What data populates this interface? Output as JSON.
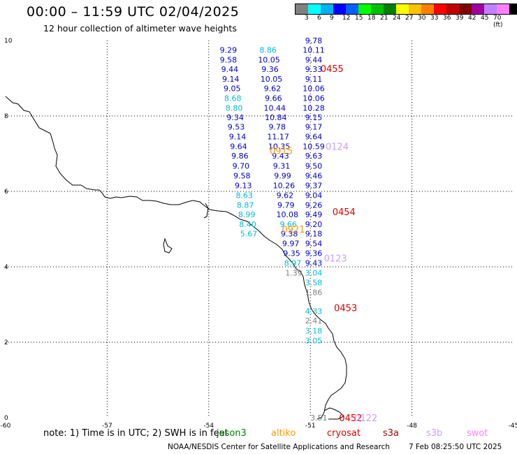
{
  "header": {
    "title": "00:00 – 11:59 UTC 02/04/2025",
    "subtitle": "12 hour collection of altimeter wave heights"
  },
  "colorbar": {
    "colors": [
      "#808080",
      "#00ffff",
      "#00b0f0",
      "#0000ff",
      "#0060ff",
      "#00ff00",
      "#00c000",
      "#008000",
      "#ffff00",
      "#ffc000",
      "#ff8000",
      "#ff0000",
      "#c00000",
      "#800000",
      "#a000a0",
      "#c080ff",
      "#ff80ff",
      "#000000"
    ],
    "labels": [
      "3",
      "6",
      "9",
      "12",
      "15",
      "18",
      "21",
      "24",
      "27",
      "30",
      "33",
      "36",
      "39",
      "42",
      "45",
      "70 (ft)"
    ]
  },
  "axes": {
    "x_ticks": [
      "-60",
      "-57",
      "-54",
      "-51",
      "-48",
      "-45"
    ],
    "y_ticks": [
      "10",
      "8",
      "6",
      "4",
      "2",
      "0"
    ]
  },
  "measurements": [
    {
      "lon": -53.42,
      "lat": 9.75,
      "text": "9.29",
      "color": "#0000cc"
    },
    {
      "lon": -53.42,
      "lat": 9.49,
      "text": "9.58",
      "color": "#0000cc"
    },
    {
      "lon": -53.38,
      "lat": 9.24,
      "text": "9.44",
      "color": "#0000cc"
    },
    {
      "lon": -53.35,
      "lat": 8.98,
      "text": "9.14",
      "color": "#0000cc"
    },
    {
      "lon": -53.31,
      "lat": 8.73,
      "text": "9.05",
      "color": "#0000cc"
    },
    {
      "lon": -53.29,
      "lat": 8.47,
      "text": "8.68",
      "color": "#00bbdd"
    },
    {
      "lon": -53.25,
      "lat": 8.21,
      "text": "8.80",
      "color": "#00bbdd"
    },
    {
      "lon": -53.22,
      "lat": 7.96,
      "text": "9.34",
      "color": "#0000cc"
    },
    {
      "lon": -53.19,
      "lat": 7.71,
      "text": "9.53",
      "color": "#0000cc"
    },
    {
      "lon": -53.15,
      "lat": 7.45,
      "text": "9.14",
      "color": "#0000cc"
    },
    {
      "lon": -53.12,
      "lat": 7.19,
      "text": "9.64",
      "color": "#0000cc"
    },
    {
      "lon": -53.08,
      "lat": 6.94,
      "text": "9.86",
      "color": "#0000cc"
    },
    {
      "lon": -53.05,
      "lat": 6.68,
      "text": "9.70",
      "color": "#0000cc"
    },
    {
      "lon": -53.02,
      "lat": 6.42,
      "text": "9.58",
      "color": "#0000cc"
    },
    {
      "lon": -52.98,
      "lat": 6.16,
      "text": "9.13",
      "color": "#0000cc"
    },
    {
      "lon": -52.95,
      "lat": 5.9,
      "text": "8.63",
      "color": "#00bbdd"
    },
    {
      "lon": -52.92,
      "lat": 5.64,
      "text": "8.87",
      "color": "#00bbdd"
    },
    {
      "lon": -52.88,
      "lat": 5.39,
      "text": "8.99",
      "color": "#00bbdd"
    },
    {
      "lon": -52.85,
      "lat": 5.13,
      "text": "8.40",
      "color": "#00bbdd"
    },
    {
      "lon": -52.82,
      "lat": 4.88,
      "text": "5.67",
      "color": "#00bbdd"
    },
    {
      "lon": -52.25,
      "lat": 9.75,
      "text": "8.86",
      "color": "#00bbdd"
    },
    {
      "lon": -52.22,
      "lat": 9.49,
      "text": "10.05",
      "color": "#0000cc"
    },
    {
      "lon": -52.19,
      "lat": 9.24,
      "text": "9.36",
      "color": "#0000cc"
    },
    {
      "lon": -52.15,
      "lat": 8.98,
      "text": "10.05",
      "color": "#0000cc"
    },
    {
      "lon": -52.12,
      "lat": 8.73,
      "text": "9.62",
      "color": "#0000cc"
    },
    {
      "lon": -52.09,
      "lat": 8.47,
      "text": "9.66",
      "color": "#0000cc"
    },
    {
      "lon": -52.05,
      "lat": 8.21,
      "text": "10.44",
      "color": "#0000cc"
    },
    {
      "lon": -52.02,
      "lat": 7.96,
      "text": "10.84",
      "color": "#0000cc"
    },
    {
      "lon": -51.98,
      "lat": 7.71,
      "text": "9.78",
      "color": "#0000cc"
    },
    {
      "lon": -51.95,
      "lat": 7.45,
      "text": "11.17",
      "color": "#0000cc"
    },
    {
      "lon": -51.92,
      "lat": 7.19,
      "text": "10.35",
      "color": "#0000cc"
    },
    {
      "lon": -51.88,
      "lat": 6.94,
      "text": "9.43",
      "color": "#0000cc"
    },
    {
      "lon": -51.85,
      "lat": 6.68,
      "text": "9.31",
      "color": "#0000cc"
    },
    {
      "lon": -51.82,
      "lat": 6.42,
      "text": "9.99",
      "color": "#0000cc"
    },
    {
      "lon": -51.78,
      "lat": 6.16,
      "text": "10.26",
      "color": "#0000cc"
    },
    {
      "lon": -51.75,
      "lat": 5.9,
      "text": "9.62",
      "color": "#0000cc"
    },
    {
      "lon": -51.72,
      "lat": 5.64,
      "text": "9.79",
      "color": "#0000cc"
    },
    {
      "lon": -51.68,
      "lat": 5.39,
      "text": "10.08",
      "color": "#0000cc"
    },
    {
      "lon": -51.65,
      "lat": 5.13,
      "text": "9.66",
      "color": "#00bbdd"
    },
    {
      "lon": -51.62,
      "lat": 4.88,
      "text": "9.38",
      "color": "#0000cc"
    },
    {
      "lon": -51.58,
      "lat": 4.62,
      "text": "9.97",
      "color": "#0000cc"
    },
    {
      "lon": -51.55,
      "lat": 4.36,
      "text": "9.35",
      "color": "#0000cc"
    },
    {
      "lon": -51.52,
      "lat": 4.1,
      "text": "8.97",
      "color": "#00bbdd"
    },
    {
      "lon": -51.49,
      "lat": 3.84,
      "text": "1.39",
      "color": "#808080"
    },
    {
      "lon": -50.9,
      "lat": 10.0,
      "text": "9.78",
      "color": "#0000cc"
    },
    {
      "lon": -50.9,
      "lat": 9.75,
      "text": "10.11",
      "color": "#0000cc"
    },
    {
      "lon": -50.9,
      "lat": 9.49,
      "text": "9.44",
      "color": "#0000cc"
    },
    {
      "lon": -50.9,
      "lat": 9.24,
      "text": "9.33",
      "color": "#0000cc"
    },
    {
      "lon": -50.9,
      "lat": 8.98,
      "text": "9.11",
      "color": "#0000cc"
    },
    {
      "lon": -50.9,
      "lat": 8.73,
      "text": "10.06",
      "color": "#0000cc"
    },
    {
      "lon": -50.9,
      "lat": 8.47,
      "text": "10.06",
      "color": "#0000cc"
    },
    {
      "lon": -50.9,
      "lat": 8.21,
      "text": "10.28",
      "color": "#0000cc"
    },
    {
      "lon": -50.9,
      "lat": 7.96,
      "text": "9.15",
      "color": "#0000cc"
    },
    {
      "lon": -50.9,
      "lat": 7.71,
      "text": "9.17",
      "color": "#0000cc"
    },
    {
      "lon": -50.9,
      "lat": 7.45,
      "text": "9.64",
      "color": "#0000cc"
    },
    {
      "lon": -50.9,
      "lat": 7.19,
      "text": "10.59",
      "color": "#0000cc"
    },
    {
      "lon": -50.9,
      "lat": 6.94,
      "text": "9.63",
      "color": "#0000cc"
    },
    {
      "lon": -50.9,
      "lat": 6.68,
      "text": "9.50",
      "color": "#0000cc"
    },
    {
      "lon": -50.9,
      "lat": 6.42,
      "text": "9.46",
      "color": "#0000cc"
    },
    {
      "lon": -50.9,
      "lat": 6.16,
      "text": "9.37",
      "color": "#0000cc"
    },
    {
      "lon": -50.9,
      "lat": 5.9,
      "text": "9.04",
      "color": "#0000cc"
    },
    {
      "lon": -50.9,
      "lat": 5.64,
      "text": "9.26",
      "color": "#0000cc"
    },
    {
      "lon": -50.9,
      "lat": 5.39,
      "text": "9.49",
      "color": "#0000cc"
    },
    {
      "lon": -50.9,
      "lat": 5.13,
      "text": "9.20",
      "color": "#0000cc"
    },
    {
      "lon": -50.9,
      "lat": 4.88,
      "text": "9.18",
      "color": "#0000cc"
    },
    {
      "lon": -50.9,
      "lat": 4.62,
      "text": "9.54",
      "color": "#0000cc"
    },
    {
      "lon": -50.9,
      "lat": 4.36,
      "text": "9.36",
      "color": "#0000cc"
    },
    {
      "lon": -50.9,
      "lat": 4.1,
      "text": "9.43",
      "color": "#0000cc"
    },
    {
      "lon": -50.9,
      "lat": 3.84,
      "text": "3.04",
      "color": "#00bbdd"
    },
    {
      "lon": -50.9,
      "lat": 3.58,
      "text": "3.58",
      "color": "#00bbdd"
    },
    {
      "lon": -50.9,
      "lat": 3.32,
      "text": "1.86",
      "color": "#808080"
    },
    {
      "lon": -50.9,
      "lat": 2.82,
      "text": "4.33",
      "color": "#00bbdd"
    },
    {
      "lon": -50.9,
      "lat": 2.57,
      "text": "2.41",
      "color": "#808080"
    },
    {
      "lon": -50.9,
      "lat": 2.31,
      "text": "3.18",
      "color": "#00bbdd"
    },
    {
      "lon": -50.9,
      "lat": 2.05,
      "text": "3.05",
      "color": "#00bbdd"
    },
    {
      "lon": -50.75,
      "lat": 0.0,
      "text": "3.51",
      "color": "#808080"
    }
  ],
  "pass_labels": [
    {
      "lon": -50.7,
      "lat": 9.26,
      "text": "0455",
      "color": "#dd0000"
    },
    {
      "lon": -50.35,
      "lat": 5.46,
      "text": "0454",
      "color": "#dd0000"
    },
    {
      "lon": -50.3,
      "lat": 2.92,
      "text": "0453",
      "color": "#dd0000"
    },
    {
      "lon": -50.15,
      "lat": 0.0,
      "text": "0452",
      "color": "#dd0000"
    },
    {
      "lon": -52.2,
      "lat": 7.08,
      "text": "0915",
      "color": "#ff9900"
    },
    {
      "lon": -51.84,
      "lat": 5.0,
      "text": "0921",
      "color": "#ff9900"
    },
    {
      "lon": -50.55,
      "lat": 7.19,
      "text": "0124",
      "color": "#c8a0ff"
    },
    {
      "lon": -50.6,
      "lat": 4.23,
      "text": "0123",
      "color": "#c8a0ff"
    },
    {
      "lon": -49.7,
      "lat": 0.0,
      "text": "0122",
      "color": "#c8a0ff"
    }
  ],
  "legend": {
    "note": "note:  1) Time is in UTC; 2) SWH is in feet",
    "items": [
      {
        "text": "jason3",
        "color": "#008000"
      },
      {
        "text": "altiko",
        "color": "#ff9900"
      },
      {
        "text": "cryosat",
        "color": "#dd0000"
      },
      {
        "text": "s3a",
        "color": "#aa0000"
      },
      {
        "text": "s3b",
        "color": "#c8a0ff"
      },
      {
        "text": "swot",
        "color": "#ff80ff"
      }
    ]
  },
  "footer": {
    "credit": "NOAA/NESDIS Center for Satellite Applications and Research",
    "timestamp": "7 Feb 08:25:50 UTC 2025"
  }
}
